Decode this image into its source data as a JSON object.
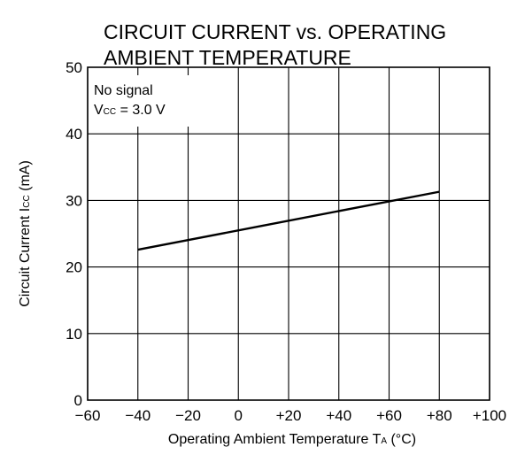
{
  "chart_data": {
    "type": "line",
    "title_lines": [
      "CIRCUIT CURRENT vs. OPERATING",
      "AMBIENT TEMPERATURE"
    ],
    "xlabel": {
      "main": "Operating Ambient Temperature  T",
      "sub": "A",
      "unit": " (°C)"
    },
    "ylabel": {
      "main": "Circuit Current  I",
      "sub": "CC",
      "unit": " (mA)"
    },
    "xlim": [
      -60,
      100
    ],
    "ylim": [
      0,
      50
    ],
    "x_ticks": [
      -60,
      -40,
      -20,
      0,
      20,
      40,
      60,
      80,
      100
    ],
    "x_tick_labels": [
      "−60",
      "−40",
      "−20",
      "0",
      "+20",
      "+40",
      "+60",
      "+80",
      "+100"
    ],
    "y_ticks": [
      0,
      10,
      20,
      30,
      40,
      50
    ],
    "y_tick_labels": [
      "0",
      "10",
      "20",
      "30",
      "40",
      "50"
    ],
    "grid": true,
    "annotations": {
      "line1": "No signal",
      "line2_main": "V",
      "line2_sub": "CC",
      "line2_rest": " = 3.0 V"
    },
    "series": [
      {
        "x": [
          -40,
          80
        ],
        "y": [
          22.6,
          31.3
        ]
      }
    ]
  }
}
